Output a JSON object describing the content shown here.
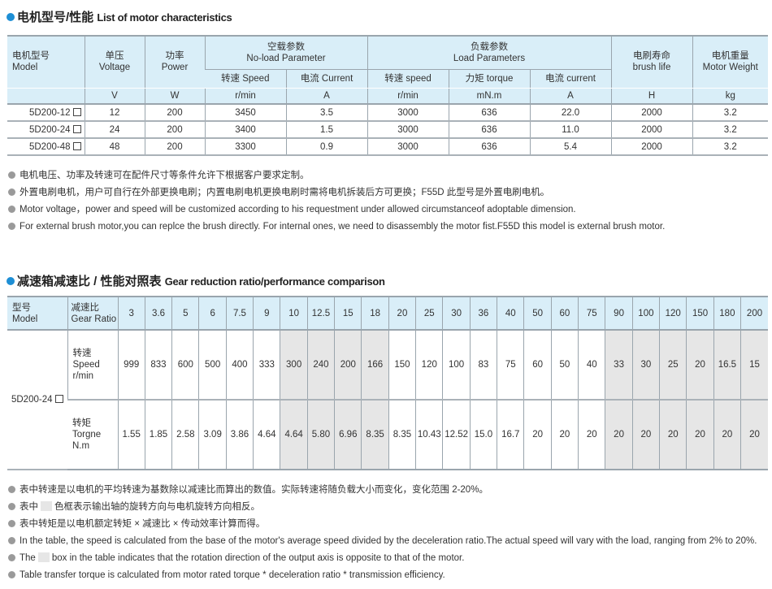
{
  "section1": {
    "title_cn": "电机型号/性能",
    "title_en": "List of motor characteristics",
    "headers": {
      "model": [
        "电机型号",
        "Model"
      ],
      "voltage": [
        "单压",
        "Voltage"
      ],
      "power": [
        "功率",
        "Power"
      ],
      "noload": [
        "空载参数",
        "No-load Parameter"
      ],
      "noload_speed": "转速 Speed",
      "noload_current": "电流 Current",
      "load": [
        "负载参数",
        "Load Parameters"
      ],
      "load_speed": "转速 speed",
      "load_torque": "力矩 torque",
      "load_current": "电流 current",
      "brush": [
        "电刷寿命",
        "brush life"
      ],
      "weight": [
        "电机重量",
        "Motor Weight"
      ]
    },
    "units": [
      "V",
      "W",
      "r/min",
      "A",
      "r/min",
      "mN.m",
      "A",
      "H",
      "kg"
    ],
    "rows": [
      [
        "5D200-12",
        "12",
        "200",
        "3450",
        "3.5",
        "3000",
        "636",
        "22.0",
        "2000",
        "3.2"
      ],
      [
        "5D200-24",
        "24",
        "200",
        "3400",
        "1.5",
        "3000",
        "636",
        "11.0",
        "2000",
        "3.2"
      ],
      [
        "5D200-48",
        "48",
        "200",
        "3300",
        "0.9",
        "3000",
        "636",
        "5.4",
        "2000",
        "3.2"
      ]
    ],
    "notes": [
      "电机电压、功率及转速可在配件尺寸等条件允许下根据客户要求定制。",
      "外置电刷电机，用户可自行在外部更换电刷；内置电刷电机更换电刷时需将电机拆装后方可更换；F55D 此型号是外置电刷电机。",
      "Motor voltage，power and speed will be customized according to his requestment under allowed circumstanceof adoptable dimension.",
      "For external brush motor,you can replce the brush directly. For internal ones, we need to disassembly the motor fist.F55D this model is external brush motor."
    ]
  },
  "section2": {
    "title_cn": "减速箱减速比 / 性能对照表",
    "title_en": "Gear reduction ratio/performance comparison",
    "header_model": [
      "型号",
      "Model"
    ],
    "header_ratio": [
      "减速比",
      "Gear Ratio"
    ],
    "ratios": [
      "3",
      "3.6",
      "5",
      "6",
      "7.5",
      "9",
      "10",
      "12.5",
      "15",
      "18",
      "20",
      "25",
      "30",
      "36",
      "40",
      "50",
      "60",
      "75",
      "90",
      "100",
      "120",
      "150",
      "180",
      "200"
    ],
    "shaded_ratios": [
      "10",
      "12.5",
      "15",
      "18",
      "90",
      "100",
      "120",
      "150",
      "180",
      "200"
    ],
    "shade_color": "#e6e6e6",
    "model": "5D200-24",
    "speed_label": [
      "转速",
      "Speed",
      "r/min"
    ],
    "speed": [
      "999",
      "833",
      "600",
      "500",
      "400",
      "333",
      "300",
      "240",
      "200",
      "166",
      "150",
      "120",
      "100",
      "83",
      "75",
      "60",
      "50",
      "40",
      "33",
      "30",
      "25",
      "20",
      "16.5",
      "15"
    ],
    "torque_label": [
      "转矩",
      "Torgne",
      "N.m"
    ],
    "torque": [
      "1.55",
      "1.85",
      "2.58",
      "3.09",
      "3.86",
      "4.64",
      "4.64",
      "5.80",
      "6.96",
      "8.35",
      "8.35",
      "10.43",
      "12.52",
      "15.0",
      "16.7",
      "20",
      "20",
      "20",
      "20",
      "20",
      "20",
      "20",
      "20",
      "20"
    ],
    "notes": {
      "n1": "表中转速是以电机的平均转速为基数除以减速比而算出的数值。实际转速将随负载大小而变化，变化范围 2-20%。",
      "n2a": "表中",
      "n2b": "色框表示输出轴的旋转方向与电机旋转方向相反。",
      "n3": "表中转矩是以电机额定转矩 × 减速比 × 传动效率计算而得。",
      "n4": "In the table, the speed is calculated from the base of the motor's average speed  divided by the deceleration ratio.The actual speed will vary with the load, ranging from 2% to 20%.",
      "n5a": "The",
      "n5b": "box in the table indicates that the rotation direction of the output axis is opposite to that of the motor.",
      "n6": "Table transfer torque is calculated from motor rated torque * deceleration ratio * transmission efficiency."
    }
  },
  "colors": {
    "accent": "#1e8fd5",
    "header_bg": "#d9eef8"
  }
}
